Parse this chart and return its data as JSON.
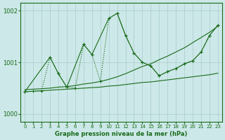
{
  "background_color": "#cce8e8",
  "grid_color": "#aacccc",
  "line_color": "#1a6b1a",
  "title": "Graphe pression niveau de la mer (hPa)",
  "xlim": [
    -0.5,
    23.5
  ],
  "ylim": [
    999.85,
    1002.15
  ],
  "yticks": [
    1000,
    1001,
    1002
  ],
  "xticks": [
    0,
    1,
    2,
    3,
    4,
    5,
    6,
    7,
    8,
    9,
    10,
    11,
    12,
    13,
    14,
    15,
    16,
    17,
    18,
    19,
    20,
    21,
    22,
    23
  ],
  "smooth_upper": [
    1000.47,
    1000.48,
    1000.49,
    1000.5,
    1000.52,
    1000.53,
    1000.55,
    1000.58,
    1000.6,
    1000.63,
    1000.67,
    1000.72,
    1000.78,
    1000.85,
    1000.92,
    1000.97,
    1001.05,
    1001.12,
    1001.2,
    1001.28,
    1001.38,
    1001.48,
    1001.58,
    1001.7
  ],
  "smooth_lower": [
    1000.43,
    1000.44,
    1000.45,
    1000.46,
    1000.47,
    1000.48,
    1000.49,
    1000.5,
    1000.51,
    1000.52,
    1000.54,
    1000.55,
    1000.57,
    1000.59,
    1000.61,
    1000.62,
    1000.64,
    1000.66,
    1000.68,
    1000.7,
    1000.72,
    1000.74,
    1000.76,
    1000.79
  ],
  "volatile_x": [
    0,
    3,
    4,
    5,
    7,
    8,
    10,
    11,
    12,
    13,
    14,
    15,
    16,
    17,
    18,
    19,
    20,
    21,
    22,
    23
  ],
  "volatile_y": [
    1000.43,
    1001.1,
    1000.78,
    1000.52,
    1001.35,
    1001.15,
    1001.85,
    1001.95,
    1001.52,
    1001.18,
    1001.0,
    1000.93,
    1000.74,
    1000.82,
    1000.88,
    1000.97,
    1001.03,
    1001.2,
    1001.52,
    1001.72
  ],
  "dotted_x": [
    0,
    1,
    2,
    3,
    4,
    5,
    6,
    7,
    8,
    9,
    10,
    11,
    12,
    13,
    14,
    15,
    16,
    17,
    18,
    19,
    20,
    21,
    22,
    23
  ],
  "dotted_y": [
    1000.43,
    1000.44,
    1000.45,
    1001.1,
    1000.78,
    1000.52,
    1000.5,
    1001.35,
    1001.15,
    1000.63,
    1001.85,
    1001.95,
    1001.52,
    1001.18,
    1001.0,
    1000.93,
    1000.74,
    1000.82,
    1000.88,
    1000.97,
    1001.03,
    1001.2,
    1001.52,
    1001.72
  ]
}
